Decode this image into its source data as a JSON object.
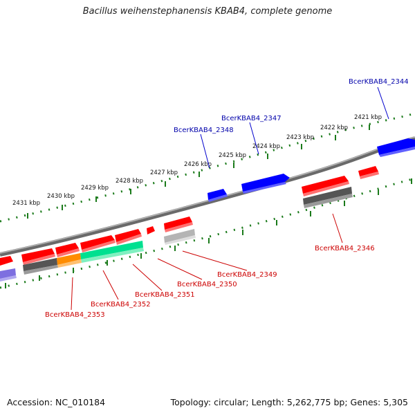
{
  "title": "Bacillus weihenstephanensis KBAB4, complete genome",
  "footer": {
    "accession": "Accession: NC_010184",
    "topology": "Topology: circular; Length: 5,262,775 bp; Genes: 5,305"
  },
  "colors": {
    "forward": "#ff0000",
    "reverse": "#0000ff",
    "backbone": "#7a7a7a",
    "ticks": "#1a7a1a",
    "label_forward": "#cc0000",
    "label_reverse": "#0000aa",
    "pseudo": "#555555",
    "orange": "#ff8c00",
    "green": "#00e090",
    "lavender": "#7d6fe0"
  },
  "ticks": [
    {
      "label": "2431 kbp"
    },
    {
      "label": "2430 kbp"
    },
    {
      "label": "2429 kbp"
    },
    {
      "label": "2428 kbp"
    },
    {
      "label": "2427 kbp"
    },
    {
      "label": "2426 kbp"
    },
    {
      "label": "2425 kbp"
    },
    {
      "label": "2424 kbp"
    },
    {
      "label": "2423 kbp"
    },
    {
      "label": "2422 kbp"
    },
    {
      "label": "2421 kbp"
    }
  ],
  "gene_labels": {
    "g2344": "BcerKBAB4_2344",
    "g2347": "BcerKBAB4_2347",
    "g2348": "BcerKBAB4_2348",
    "g2346": "BcerKBAB4_2346",
    "g2349": "BcerKBAB4_2349",
    "g2350": "BcerKBAB4_2350",
    "g2351": "BcerKBAB4_2351",
    "g2352": "BcerKBAB4_2352",
    "g2353": "BcerKBAB4_2353"
  }
}
